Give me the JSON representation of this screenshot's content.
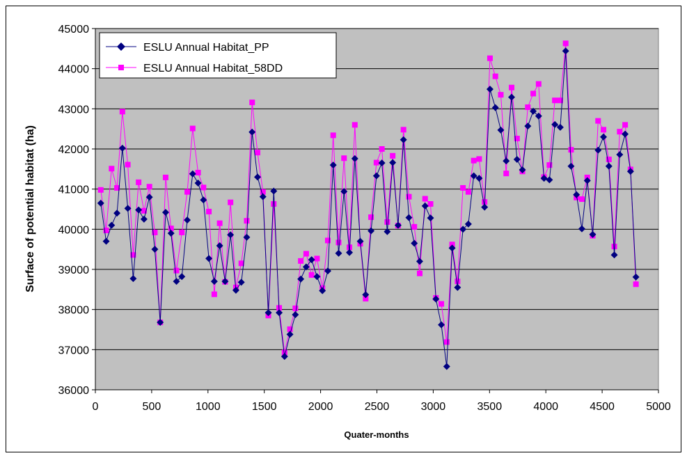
{
  "chart_data": {
    "type": "line",
    "xlabel": "Quater-months",
    "ylabel": "Surface of potential habitat (ha)",
    "xlim": [
      0,
      5000
    ],
    "ylim": [
      36000,
      45000
    ],
    "xticks": [
      0,
      500,
      1000,
      1500,
      2000,
      2500,
      3000,
      3500,
      4000,
      4500,
      5000
    ],
    "yticks": [
      36000,
      37000,
      38000,
      39000,
      40000,
      41000,
      42000,
      43000,
      44000,
      45000
    ],
    "grid": "horizontal",
    "legend_position": "top-left",
    "plot_background": "#c0c0c0",
    "series": [
      {
        "name": "ESLU Annual Habitat_PP",
        "color": "#000080",
        "marker": "diamond",
        "x": [
          48,
          96,
          144,
          192,
          240,
          288,
          336,
          384,
          432,
          480,
          528,
          576,
          624,
          672,
          720,
          768,
          816,
          864,
          912,
          960,
          1008,
          1056,
          1104,
          1152,
          1200,
          1248,
          1296,
          1344,
          1392,
          1440,
          1488,
          1536,
          1584,
          1632,
          1680,
          1728,
          1776,
          1824,
          1872,
          1920,
          1968,
          2016,
          2064,
          2112,
          2160,
          2208,
          2256,
          2304,
          2352,
          2400,
          2448,
          2496,
          2544,
          2592,
          2640,
          2688,
          2736,
          2784,
          2832,
          2880,
          2928,
          2976,
          3024,
          3072,
          3120,
          3168,
          3216,
          3264,
          3312,
          3360,
          3408,
          3456,
          3504,
          3552,
          3600,
          3648,
          3696,
          3744,
          3792,
          3840,
          3888,
          3936,
          3984,
          4032,
          4080,
          4128,
          4176,
          4224,
          4272,
          4320,
          4368,
          4416,
          4464,
          4512,
          4560,
          4608,
          4656,
          4704,
          4752,
          4800
        ],
        "y": [
          40650,
          39700,
          40100,
          40400,
          42020,
          40520,
          38770,
          40480,
          40250,
          40800,
          39500,
          37680,
          40420,
          39900,
          38700,
          38820,
          40230,
          41380,
          41150,
          40730,
          39270,
          38700,
          39590,
          38700,
          39860,
          38480,
          38680,
          39800,
          42420,
          41300,
          40810,
          37920,
          40950,
          37920,
          36830,
          37380,
          37870,
          38760,
          39060,
          39240,
          38820,
          38470,
          38960,
          41600,
          39400,
          40940,
          39420,
          41760,
          39700,
          38370,
          39960,
          41330,
          41650,
          39940,
          41660,
          40100,
          42230,
          40290,
          39650,
          39200,
          40580,
          40280,
          38260,
          37620,
          36580,
          39530,
          38550,
          40000,
          40130,
          41330,
          41270,
          40550,
          43490,
          43030,
          42470,
          41700,
          43290,
          41740,
          41480,
          42570,
          42940,
          42820,
          41270,
          41230,
          42610,
          42540,
          44440,
          41570,
          40860,
          40010,
          41210,
          39870,
          41970,
          42300,
          41570,
          39360,
          41860,
          42370,
          41440,
          38810
        ]
      },
      {
        "name": "ESLU Annual Habitat_58DD",
        "color": "#ff00ff",
        "marker": "square",
        "x": [
          48,
          96,
          144,
          192,
          240,
          288,
          336,
          384,
          432,
          480,
          528,
          576,
          624,
          672,
          720,
          768,
          816,
          864,
          912,
          960,
          1008,
          1056,
          1104,
          1152,
          1200,
          1248,
          1296,
          1344,
          1392,
          1440,
          1488,
          1536,
          1584,
          1632,
          1680,
          1728,
          1776,
          1824,
          1872,
          1920,
          1968,
          2016,
          2064,
          2112,
          2160,
          2208,
          2256,
          2304,
          2352,
          2400,
          2448,
          2496,
          2544,
          2592,
          2640,
          2688,
          2736,
          2784,
          2832,
          2880,
          2928,
          2976,
          3024,
          3072,
          3120,
          3168,
          3216,
          3264,
          3312,
          3360,
          3408,
          3456,
          3504,
          3552,
          3600,
          3648,
          3696,
          3744,
          3792,
          3840,
          3888,
          3936,
          3984,
          4032,
          4080,
          4128,
          4176,
          4224,
          4272,
          4320,
          4368,
          4416,
          4464,
          4512,
          4560,
          4608,
          4656,
          4704,
          4752,
          4800
        ],
        "y": [
          40980,
          39970,
          41510,
          41030,
          42930,
          41610,
          39360,
          41170,
          40460,
          41060,
          39920,
          37680,
          41290,
          40020,
          38970,
          39920,
          40930,
          42510,
          41410,
          41040,
          40440,
          38380,
          40150,
          38690,
          40670,
          38550,
          39150,
          40210,
          43160,
          41910,
          40930,
          37850,
          40630,
          38040,
          36930,
          37510,
          38030,
          39210,
          39390,
          38860,
          39270,
          38530,
          39720,
          42340,
          39670,
          41770,
          39550,
          42600,
          39640,
          38270,
          40300,
          41660,
          42000,
          40180,
          41830,
          40090,
          42480,
          40810,
          40060,
          38900,
          40760,
          40630,
          38290,
          38140,
          37190,
          39620,
          38700,
          41030,
          40930,
          41710,
          41750,
          40680,
          44260,
          43810,
          43350,
          41390,
          43530,
          42260,
          41440,
          43040,
          43380,
          43620,
          41300,
          41600,
          43210,
          43210,
          44630,
          41980,
          40790,
          40750,
          41290,
          39840,
          42700,
          42480,
          41740,
          39570,
          42430,
          42600,
          41490,
          38630
        ]
      }
    ]
  }
}
